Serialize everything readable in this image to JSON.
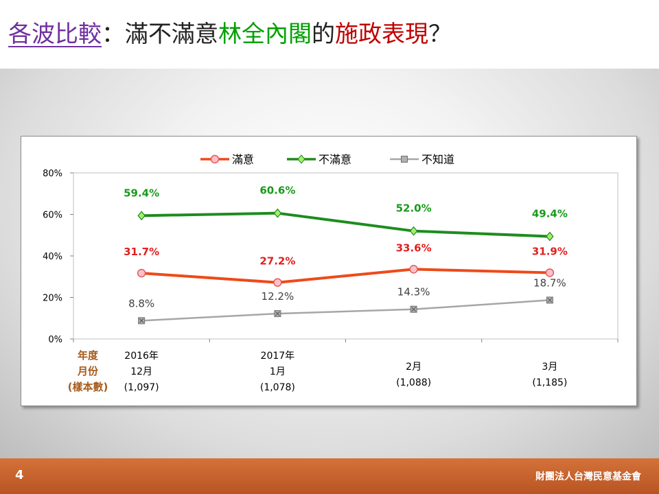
{
  "title": {
    "prefix": "各波比較",
    "sep": "：",
    "part1": "滿不滿意",
    "part2": "林全內閣",
    "part3": "的",
    "part4": "施政表現",
    "part5": "？"
  },
  "footer": {
    "page": "4",
    "org": "財團法人台灣民意基金會"
  },
  "colors": {
    "satisfied": "#ee4a1a",
    "dissatisfied": "#1e8c1e",
    "unknown": "#a6a6a6",
    "title_purple": "#7030a0",
    "footer": "#c0622c"
  },
  "chart_data": {
    "type": "line",
    "x": [
      "2016年 12月",
      "2017年 1月",
      "2月",
      "3月"
    ],
    "ylim": [
      0,
      80
    ],
    "yticks": [
      "0%",
      "20%",
      "40%",
      "60%",
      "80%"
    ],
    "series": [
      {
        "name": "滿意",
        "values": [
          31.7,
          27.2,
          33.6,
          31.9
        ],
        "labels": [
          "31.7%",
          "27.2%",
          "33.6%",
          "31.9%"
        ],
        "color": "#ee4a1a",
        "label_color": "#e02020",
        "marker": "circle"
      },
      {
        "name": "不滿意",
        "values": [
          59.4,
          60.6,
          52.0,
          49.4
        ],
        "labels": [
          "59.4%",
          "60.6%",
          "52.0%",
          "49.4%"
        ],
        "color": "#1e8c1e",
        "label_color": "#1a9a1a",
        "marker": "diamond"
      },
      {
        "name": "不知道",
        "values": [
          8.8,
          12.2,
          14.3,
          18.7
        ],
        "labels": [
          "8.8%",
          "12.2%",
          "14.3%",
          "18.7%"
        ],
        "color": "#a6a6a6",
        "label_color": "#404040",
        "marker": "square-x"
      }
    ],
    "row_headers": [
      "年度",
      "月份",
      "(樣本數)"
    ],
    "categories": [
      {
        "year": "2016年",
        "month": "12月",
        "n": "(1,097)"
      },
      {
        "year": "2017年",
        "month": "1月",
        "n": "(1,078)"
      },
      {
        "year": "",
        "month": "2月",
        "n": "(1,088)"
      },
      {
        "year": "",
        "month": "3月",
        "n": "(1,185)"
      }
    ],
    "legend": "top-center",
    "grid": false
  }
}
